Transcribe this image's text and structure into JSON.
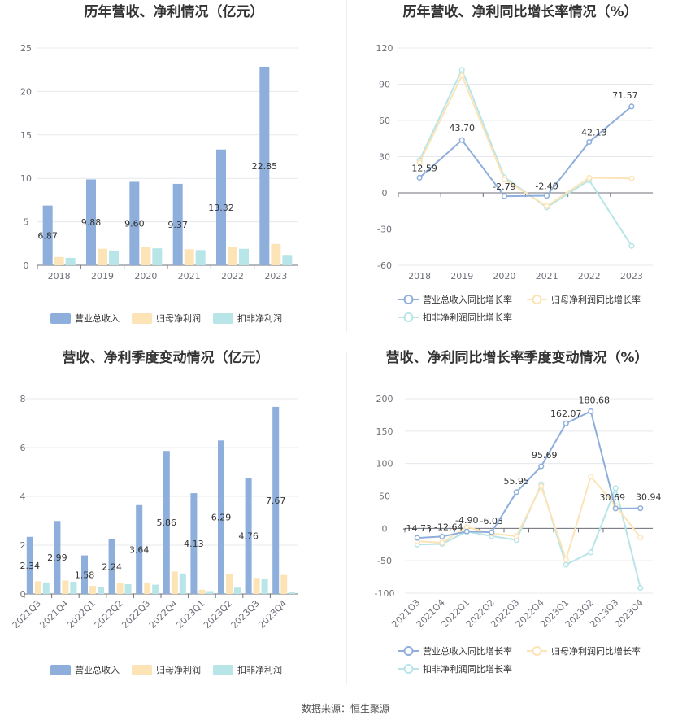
{
  "source_label": "数据来源：恒生聚源",
  "colors": {
    "revenue": "#8eaedb",
    "net_profit": "#fde4b6",
    "deducted_profit": "#b7e5e8",
    "grid": "#e6e8ee",
    "axis": "#6e7079"
  },
  "chart_data": [
    {
      "type": "bar",
      "title": "历年营收、净利情况（亿元）",
      "categories": [
        "2018",
        "2019",
        "2020",
        "2021",
        "2022",
        "2023"
      ],
      "ylim": [
        0,
        25
      ],
      "yticks": [
        0,
        5,
        10,
        15,
        20,
        25
      ],
      "grid": true,
      "legend_position": "bottom",
      "series": [
        {
          "name": "营业总收入",
          "values": [
            6.87,
            9.88,
            9.6,
            9.37,
            13.32,
            22.85
          ],
          "labels": [
            "6.87",
            "9.88",
            "9.60",
            "9.37",
            "13.32",
            "22.85"
          ]
        },
        {
          "name": "归母净利润",
          "values": [
            0.95,
            1.9,
            2.1,
            1.85,
            2.1,
            2.45
          ]
        },
        {
          "name": "扣非净利润",
          "values": [
            0.85,
            1.7,
            1.95,
            1.75,
            1.9,
            1.1
          ]
        }
      ]
    },
    {
      "type": "line",
      "title": "历年营收、净利同比增长率情况（%）",
      "categories": [
        "2018",
        "2019",
        "2020",
        "2021",
        "2022",
        "2023"
      ],
      "ylim": [
        -60,
        120
      ],
      "yticks": [
        -60,
        -30,
        0,
        30,
        60,
        90,
        120
      ],
      "grid": true,
      "legend_position": "bottom",
      "series": [
        {
          "name": "营业总收入同比增长率",
          "values": [
            12.59,
            43.7,
            -2.79,
            -2.4,
            42.13,
            71.57
          ],
          "labels": [
            "12.59",
            "43.70",
            "-2.79",
            "-2.40",
            "42.13",
            "71.57"
          ]
        },
        {
          "name": "归母净利润同比增长率",
          "values": [
            25,
            97,
            11,
            -11,
            12.5,
            12
          ]
        },
        {
          "name": "扣非净利润同比增长率",
          "values": [
            27,
            102,
            13,
            -12,
            10.5,
            -44
          ]
        }
      ]
    },
    {
      "type": "bar",
      "title": "营收、净利季度变动情况（亿元）",
      "categories": [
        "2021Q3",
        "2021Q4",
        "2022Q1",
        "2022Q2",
        "2022Q3",
        "2022Q4",
        "2023Q1",
        "2023Q2",
        "2023Q3",
        "2023Q4"
      ],
      "ylim": [
        0,
        8
      ],
      "yticks": [
        0,
        2,
        4,
        6,
        8
      ],
      "grid": true,
      "legend_position": "bottom",
      "series": [
        {
          "name": "营业总收入",
          "values": [
            2.34,
            2.99,
            1.58,
            2.24,
            3.64,
            5.86,
            4.13,
            6.29,
            4.76,
            7.67
          ],
          "labels": [
            "2.34",
            "2.99",
            "1.58",
            "2.24",
            "3.64",
            "5.86",
            "4.13",
            "6.29",
            "4.76",
            "7.67"
          ]
        },
        {
          "name": "归母净利润",
          "values": [
            0.52,
            0.55,
            0.33,
            0.45,
            0.46,
            0.92,
            0.17,
            0.82,
            0.66,
            0.78
          ]
        },
        {
          "name": "扣非净利润",
          "values": [
            0.47,
            0.5,
            0.29,
            0.4,
            0.38,
            0.84,
            0.12,
            0.26,
            0.62,
            0.07
          ]
        }
      ]
    },
    {
      "type": "line",
      "title": "营收、净利同比增长率季度变动情况（%）",
      "categories": [
        "2021Q3",
        "2021Q4",
        "2022Q1",
        "2022Q2",
        "2022Q3",
        "2022Q4",
        "2023Q1",
        "2023Q2",
        "2023Q3",
        "2023Q4"
      ],
      "ylim": [
        -100,
        200
      ],
      "yticks": [
        -100,
        -50,
        0,
        50,
        100,
        150,
        200
      ],
      "grid": true,
      "legend_position": "bottom",
      "series": [
        {
          "name": "营业总收入同比增长率",
          "values": [
            -14.73,
            -12.64,
            -4.9,
            -6.03,
            55.95,
            95.69,
            162.07,
            180.68,
            30.69,
            30.94
          ],
          "labels": [
            "-14.73",
            "-12.64",
            "-4.90",
            "-6.03",
            "55.95",
            "95.69",
            "162.07",
            "180.68",
            "30.69",
            "30.94"
          ]
        },
        {
          "name": "归母净利润同比增长率",
          "values": [
            -20,
            -22,
            2,
            -8,
            -12,
            65,
            -48,
            80,
            35,
            -14
          ]
        },
        {
          "name": "扣非净利润同比增长率",
          "values": [
            -25,
            -24,
            -5,
            -12,
            -18,
            68,
            -56,
            -37,
            62,
            -92
          ]
        }
      ]
    }
  ]
}
